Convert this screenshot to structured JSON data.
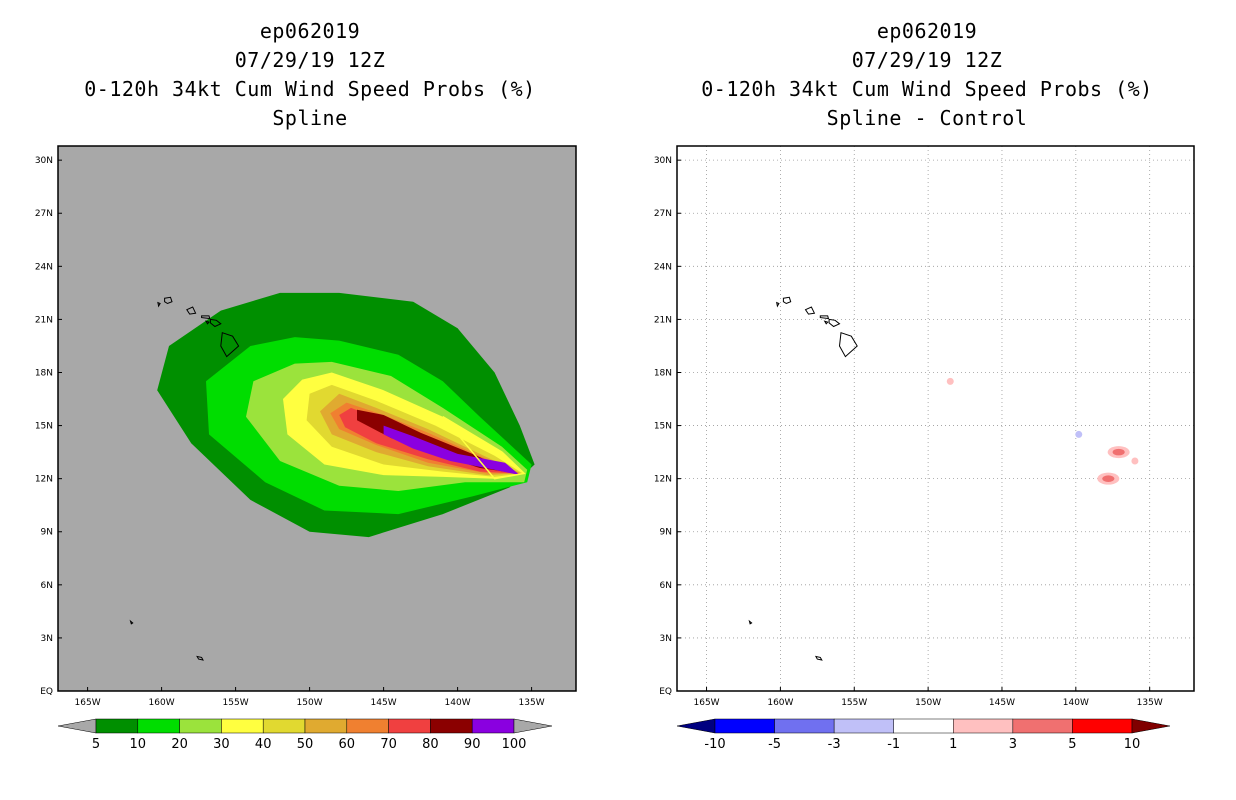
{
  "left_panel": {
    "title": [
      "ep062019",
      "07/29/19 12Z",
      "0-120h 34kt Cum Wind Speed Probs (%)",
      "Spline"
    ],
    "colorbar_labels": [
      "5",
      "10",
      "20",
      "30",
      "40",
      "50",
      "60",
      "70",
      "80",
      "90",
      "100"
    ],
    "colors": [
      "#008f00",
      "#00dd00",
      "#9be33c",
      "#ffff40",
      "#e1d930",
      "#e0aa30",
      "#f08030",
      "#f04040",
      "#8b0000",
      "#8a00e0"
    ],
    "background": "#a8a8a8"
  },
  "right_panel": {
    "title": [
      "ep062019",
      "07/29/19 12Z",
      "0-120h 34kt Cum Wind Speed Probs (%)",
      "Spline - Control"
    ],
    "colorbar_labels": [
      "-10",
      "-5",
      "-3",
      "-1",
      "1",
      "3",
      "5",
      "10"
    ],
    "colors": [
      "#000080",
      "#0000ff",
      "#7070f0",
      "#c0c0f8",
      "#ffffff",
      "#ffc0c0",
      "#f07070",
      "#ff0000",
      "#800000"
    ]
  },
  "chart_data": [
    {
      "type": "heatmap",
      "name": "Spline",
      "title": "0-120h 34kt Cum Wind Speed Probs (%)",
      "subtitle": "Spline",
      "storm": "ep062019",
      "time": "07/29/19 12Z",
      "xlim": [
        -167,
        -132
      ],
      "ylim": [
        0,
        30.8
      ],
      "xticks": [
        -165,
        -160,
        -155,
        -150,
        -145,
        -140,
        -135
      ],
      "xticklabels": [
        "165W",
        "160W",
        "155W",
        "150W",
        "145W",
        "140W",
        "135W"
      ],
      "yticks": [
        0,
        3,
        6,
        9,
        12,
        15,
        18,
        21,
        24,
        27,
        30
      ],
      "yticklabels": [
        "EQ",
        "3N",
        "6N",
        "9N",
        "12N",
        "15N",
        "18N",
        "21N",
        "24N",
        "27N",
        "30N"
      ],
      "levels": [
        5,
        10,
        20,
        30,
        40,
        50,
        60,
        70,
        80,
        90,
        100
      ],
      "contours": [
        {
          "level": 5,
          "polygon": [
            [
              -148.0,
              22.5
            ],
            [
              -143.0,
              22.0
            ],
            [
              -140.0,
              20.5
            ],
            [
              -137.5,
              18.0
            ],
            [
              -135.8,
              15.0
            ],
            [
              -134.8,
              12.8
            ],
            [
              -136.5,
              11.5
            ],
            [
              -141.0,
              10.0
            ],
            [
              -146.0,
              8.7
            ],
            [
              -150.0,
              9.0
            ],
            [
              -154.0,
              10.8
            ],
            [
              -158.0,
              14.0
            ],
            [
              -160.3,
              17.0
            ],
            [
              -159.5,
              19.5
            ],
            [
              -156.0,
              21.5
            ],
            [
              -152.0,
              22.5
            ]
          ]
        },
        {
          "level": 10,
          "polygon": [
            [
              -148.0,
              19.8
            ],
            [
              -144.0,
              19.0
            ],
            [
              -141.0,
              17.5
            ],
            [
              -138.5,
              15.5
            ],
            [
              -135.0,
              12.8
            ],
            [
              -135.3,
              11.8
            ],
            [
              -139.0,
              11.0
            ],
            [
              -144.0,
              10.0
            ],
            [
              -149.0,
              10.2
            ],
            [
              -153.0,
              11.8
            ],
            [
              -156.8,
              14.5
            ],
            [
              -157.0,
              17.5
            ],
            [
              -154.0,
              19.5
            ],
            [
              -151.0,
              20.0
            ]
          ]
        },
        {
          "level": 20,
          "polygon": [
            [
              -148.5,
              18.6
            ],
            [
              -144.5,
              17.8
            ],
            [
              -141.0,
              16.0
            ],
            [
              -137.0,
              13.8
            ],
            [
              -135.3,
              12.5
            ],
            [
              -135.5,
              11.8
            ],
            [
              -139.5,
              11.8
            ],
            [
              -144.0,
              11.3
            ],
            [
              -148.0,
              11.6
            ],
            [
              -152.0,
              13.0
            ],
            [
              -154.3,
              15.5
            ],
            [
              -153.8,
              17.5
            ],
            [
              -151.0,
              18.5
            ]
          ]
        },
        {
          "level": 30,
          "polygon": [
            [
              -148.5,
              18.0
            ],
            [
              -145.0,
              17.0
            ],
            [
              -141.0,
              15.5
            ],
            [
              -137.0,
              13.5
            ],
            [
              -135.5,
              12.3
            ],
            [
              -137.5,
              12.0
            ],
            [
              -141.0,
              12.1
            ],
            [
              -145.0,
              12.2
            ],
            [
              -149.0,
              12.8
            ],
            [
              -151.5,
              14.5
            ],
            [
              -151.8,
              16.5
            ],
            [
              -150.5,
              17.6
            ]
          ]
        },
        {
          "level": 40,
          "polygon": [
            [
              -148.5,
              17.3
            ],
            [
              -145.5,
              16.4
            ],
            [
              -141.5,
              15.0
            ],
            [
              -137.5,
              13.3
            ],
            [
              -135.6,
              12.3
            ],
            [
              -137.5,
              12.1
            ],
            [
              -141.0,
              12.4
            ],
            [
              -145.0,
              12.8
            ],
            [
              -148.5,
              13.8
            ],
            [
              -150.2,
              15.3
            ],
            [
              -150.0,
              16.8
            ]
          ]
        },
        {
          "level": 50,
          "polygon": [
            [
              -148.0,
              16.8
            ],
            [
              -145.5,
              16.0
            ],
            [
              -142.0,
              14.8
            ],
            [
              -138.0,
              13.2
            ],
            [
              -135.7,
              12.3
            ],
            [
              -138.0,
              12.2
            ],
            [
              -142.0,
              12.7
            ],
            [
              -145.5,
              13.5
            ],
            [
              -148.5,
              14.5
            ],
            [
              -149.3,
              15.8
            ]
          ]
        },
        {
          "level": 60,
          "polygon": [
            [
              -147.5,
              16.3
            ],
            [
              -145.0,
              15.6
            ],
            [
              -142.0,
              14.6
            ],
            [
              -138.0,
              13.1
            ],
            [
              -135.8,
              12.3
            ],
            [
              -138.0,
              12.3
            ],
            [
              -142.0,
              12.9
            ],
            [
              -145.5,
              13.9
            ],
            [
              -148.0,
              14.8
            ],
            [
              -148.6,
              15.7
            ]
          ]
        },
        {
          "level": 70,
          "polygon": [
            [
              -147.2,
              16.0
            ],
            [
              -145.0,
              15.3
            ],
            [
              -142.0,
              14.3
            ],
            [
              -138.5,
              13.0
            ],
            [
              -135.9,
              12.3
            ],
            [
              -138.5,
              12.4
            ],
            [
              -142.0,
              13.1
            ],
            [
              -145.5,
              14.0
            ],
            [
              -147.6,
              14.9
            ],
            [
              -148.0,
              15.6
            ]
          ]
        },
        {
          "level": 80,
          "polygon": [
            [
              -146.8,
              15.9
            ],
            [
              -145.0,
              15.6
            ],
            [
              -142.5,
              14.6
            ],
            [
              -139.0,
              13.4
            ],
            [
              -136.0,
              12.3
            ],
            [
              -138.5,
              12.6
            ],
            [
              -141.5,
              13.4
            ],
            [
              -144.5,
              14.3
            ],
            [
              -146.8,
              15.3
            ]
          ]
        },
        {
          "level": 90,
          "polygon": [
            [
              -145.0,
              15.0
            ],
            [
              -143.0,
              14.4
            ],
            [
              -140.0,
              13.4
            ],
            [
              -136.8,
              12.9
            ],
            [
              -135.8,
              12.2
            ],
            [
              -137.5,
              12.5
            ],
            [
              -140.5,
              13.0
            ],
            [
              -143.0,
              13.7
            ],
            [
              -145.0,
              14.5
            ]
          ]
        }
      ],
      "outline_30pct_level": 30
    },
    {
      "type": "heatmap",
      "name": "Spline - Control",
      "title": "0-120h 34kt Cum Wind Speed Probs (%)",
      "subtitle": "Spline - Control",
      "storm": "ep062019",
      "time": "07/29/19 12Z",
      "xlim": [
        -167,
        -132
      ],
      "ylim": [
        0,
        30.8
      ],
      "levels": [
        -10,
        -5,
        -3,
        -1,
        1,
        3,
        5,
        10
      ],
      "blobs": [
        {
          "lon": -148.5,
          "lat": 17.5,
          "value": 2
        },
        {
          "lon": -139.8,
          "lat": 14.5,
          "value": -2
        },
        {
          "lon": -137.1,
          "lat": 13.5,
          "value": 6
        },
        {
          "lon": -136.0,
          "lat": 13.0,
          "value": 2
        },
        {
          "lon": -137.8,
          "lat": 12.0,
          "value": 6
        }
      ]
    }
  ]
}
